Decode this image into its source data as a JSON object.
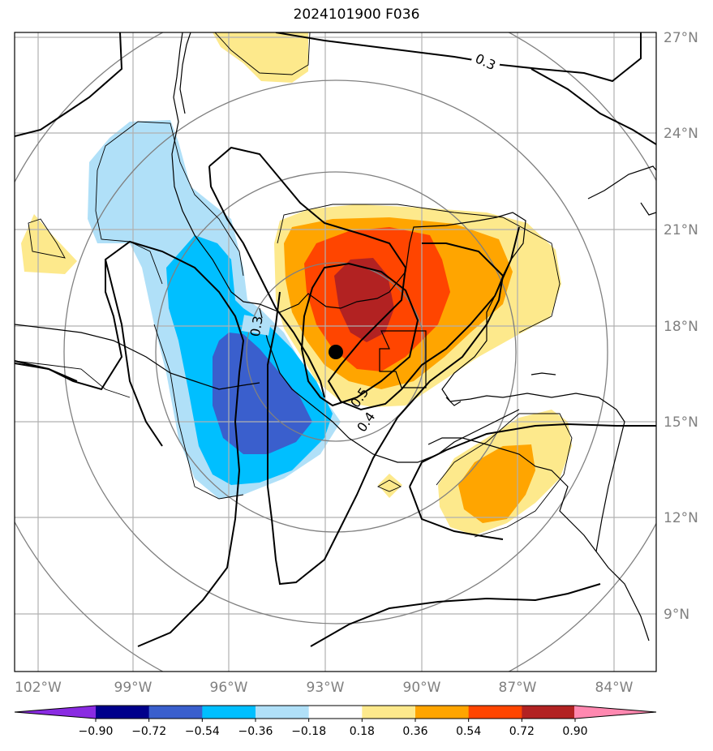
{
  "title": "2024101900 F036",
  "lat_labels": [
    "27°N",
    "24°N",
    "21°N",
    "18°N",
    "15°N",
    "12°N",
    "9°N"
  ],
  "lon_labels": [
    "102°W",
    "99°W",
    "96°W",
    "93°W",
    "90°W",
    "87°W",
    "84°W"
  ],
  "colorbar": {
    "ticks": [
      "−0.90",
      "−0.72",
      "−0.54",
      "−0.36",
      "−0.18",
      "0.18",
      "0.36",
      "0.54",
      "0.72",
      "0.90"
    ],
    "colors": [
      "#8a2be2",
      "#00008b",
      "#3a5fcd",
      "#00bfff",
      "#b0e0f8",
      "#ffffff",
      "#fde98c",
      "#ffa500",
      "#ff4500",
      "#b22222",
      "#ff88b0"
    ]
  },
  "contour_labels": [
    "0.3",
    "0.3",
    "0.5",
    "0.4"
  ],
  "storm_marker": "storm-center"
}
